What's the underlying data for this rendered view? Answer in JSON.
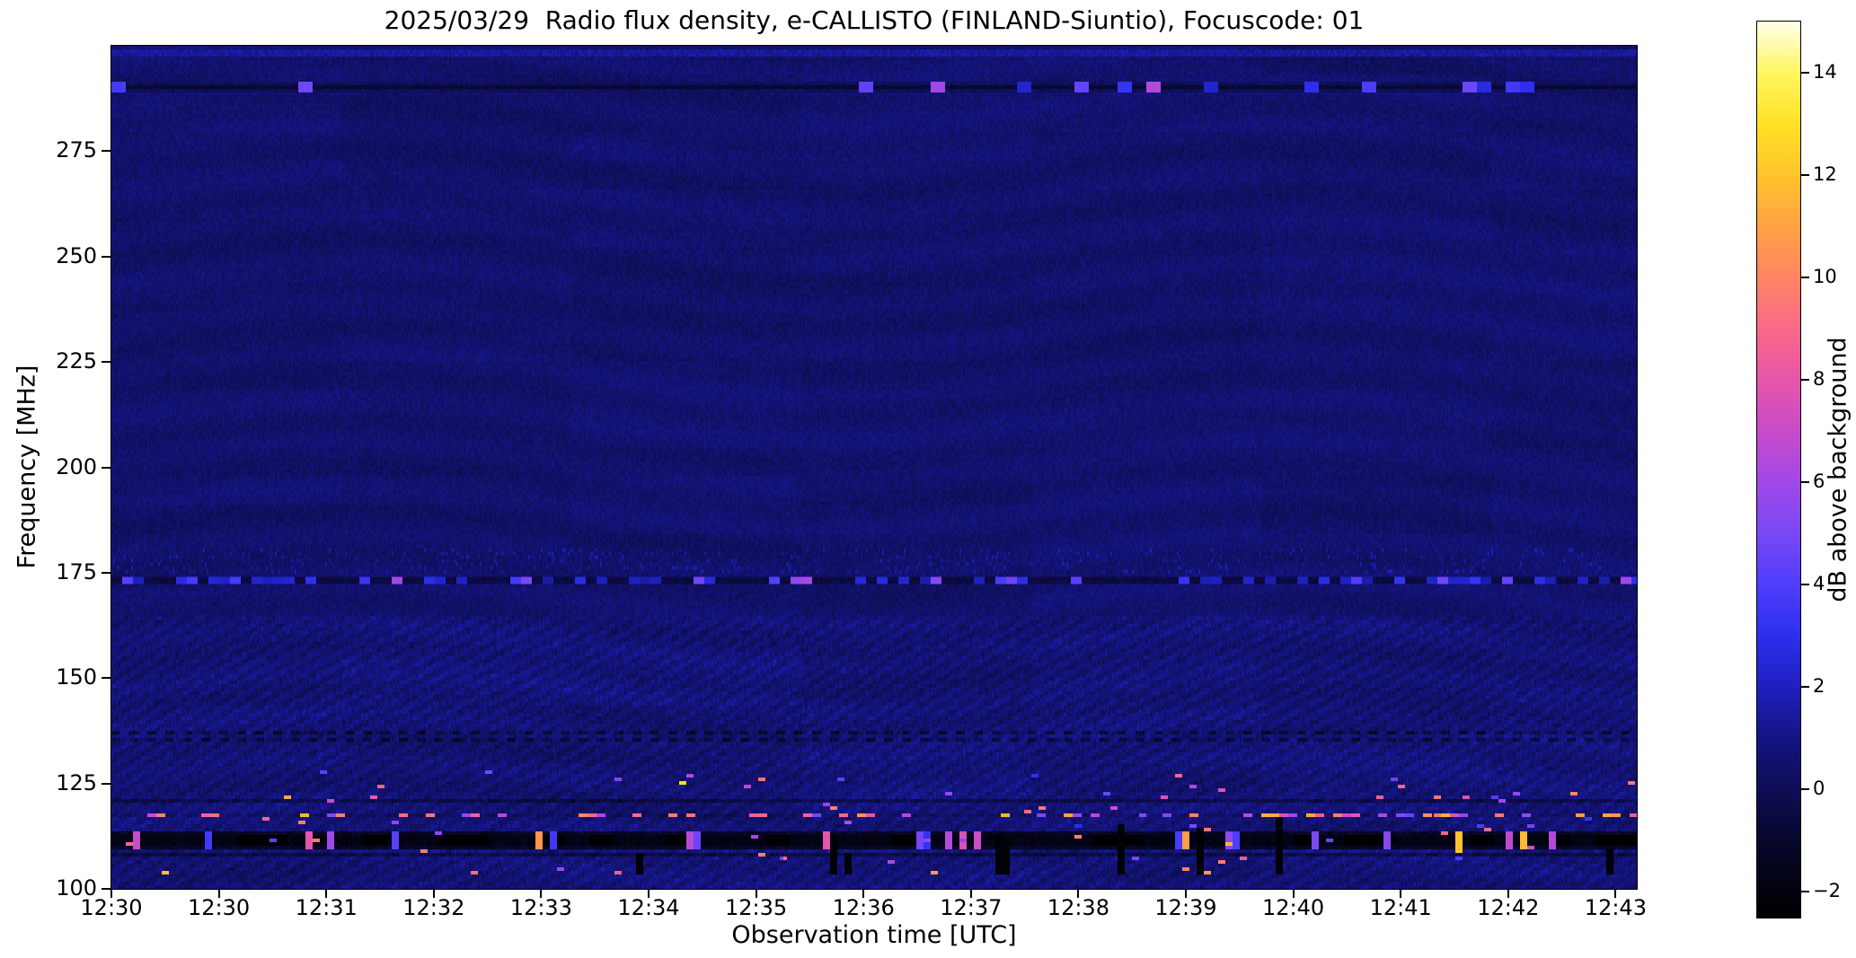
{
  "chart_data": {
    "type": "heatmap",
    "title": "2025/03/29  Radio flux density, e-CALLISTO (FINLAND-Siuntio), Focuscode: 01",
    "date": "2025/03/29",
    "instrument": "e-CALLISTO",
    "station": "FINLAND-Siuntio",
    "focuscode": "01",
    "xlabel": "Observation time [UTC]",
    "ylabel": "Frequency [MHz]",
    "colorbar_label": "dB above background",
    "x_tick_labels": [
      "12:30",
      "12:30",
      "12:31",
      "12:32",
      "12:33",
      "12:34",
      "12:35",
      "12:36",
      "12:37",
      "12:38",
      "12:39",
      "12:40",
      "12:41",
      "12:42",
      "12:43"
    ],
    "y_ticks": [
      100,
      125,
      150,
      175,
      200,
      225,
      250,
      275
    ],
    "y_range": [
      100,
      300
    ],
    "colorbar_ticks": [
      {
        "value": -2,
        "label": "−2"
      },
      {
        "value": 0,
        "label": "0"
      },
      {
        "value": 2,
        "label": "2"
      },
      {
        "value": 4,
        "label": "4"
      },
      {
        "value": 6,
        "label": "6"
      },
      {
        "value": 8,
        "label": "8"
      },
      {
        "value": 10,
        "label": "10"
      },
      {
        "value": 12,
        "label": "12"
      },
      {
        "value": 14,
        "label": "14"
      }
    ],
    "value_range": [
      -2.5,
      15
    ],
    "legend_position": "right-colorbar",
    "grid": false,
    "colormap_stops": [
      {
        "t": 0.0,
        "c": [
          0,
          0,
          0
        ]
      },
      {
        "t": 0.086,
        "c": [
          8,
          8,
          45
        ]
      },
      {
        "t": 0.143,
        "c": [
          14,
          14,
          86
        ]
      },
      {
        "t": 0.2,
        "c": [
          21,
          21,
          132
        ]
      },
      {
        "t": 0.257,
        "c": [
          30,
          32,
          192
        ]
      },
      {
        "t": 0.314,
        "c": [
          44,
          48,
          238
        ]
      },
      {
        "t": 0.371,
        "c": [
          80,
          62,
          252
        ]
      },
      {
        "t": 0.429,
        "c": [
          122,
          72,
          246
        ]
      },
      {
        "t": 0.486,
        "c": [
          162,
          72,
          232
        ]
      },
      {
        "t": 0.543,
        "c": [
          200,
          76,
          202
        ]
      },
      {
        "t": 0.6,
        "c": [
          231,
          86,
          170
        ]
      },
      {
        "t": 0.657,
        "c": [
          250,
          106,
          136
        ]
      },
      {
        "t": 0.714,
        "c": [
          255,
          132,
          100
        ]
      },
      {
        "t": 0.771,
        "c": [
          255,
          162,
          68
        ]
      },
      {
        "t": 0.829,
        "c": [
          255,
          196,
          44
        ]
      },
      {
        "t": 0.886,
        "c": [
          255,
          226,
          38
        ]
      },
      {
        "t": 0.943,
        "c": [
          255,
          247,
          96
        ]
      },
      {
        "t": 1.0,
        "c": [
          255,
          255,
          234
        ]
      }
    ],
    "features": {
      "background_level_db": 0.5,
      "textured_below_mhz": 165,
      "rfi_line_290": 290.3,
      "rfi_line_173": 173.0,
      "dark_dashed_lines": [
        137.2,
        135.5
      ],
      "dark_lines": [
        120.7,
        108.2
      ],
      "burst_line": 117.4,
      "dark_band": [
        109.6,
        113.5
      ],
      "active_band": [
        103.5,
        128.5
      ],
      "notes": "Mostly quiet dark-blue background 100-300 MHz; intermittent RFI dashes at ~290 MHz and ~173 MHz; rippled interference texture below ~165 MHz; bright orange/yellow bursts 105-128 MHz strengthening after 12:35; black dropout bars and dark channel band ~110-113 MHz."
    }
  }
}
